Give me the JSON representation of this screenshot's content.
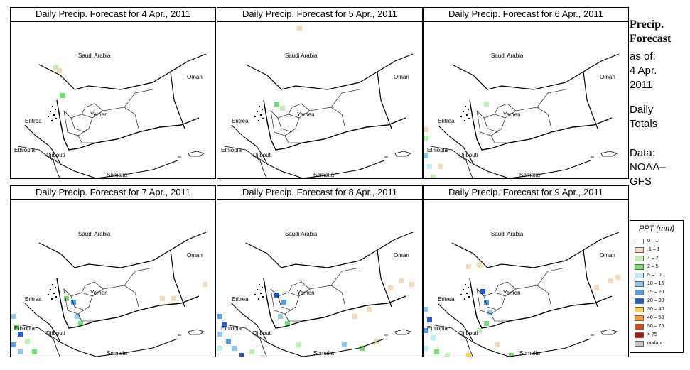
{
  "panels": [
    {
      "title": "Daily Precip. Forecast for  4 Apr., 2011",
      "day": 0
    },
    {
      "title": "Daily Precip. Forecast for  5 Apr., 2011",
      "day": 1
    },
    {
      "title": "Daily Precip. Forecast for  6 Apr., 2011",
      "day": 2
    },
    {
      "title": "Daily Precip. Forecast for  7 Apr., 2011",
      "day": 3
    },
    {
      "title": "Daily Precip. Forecast for  8 Apr., 2011",
      "day": 4
    },
    {
      "title": "Daily Precip. Forecast for  9 Apr., 2011",
      "day": 5
    }
  ],
  "map_labels": {
    "saudi": "Saudi Arabia",
    "oman": "Oman",
    "yemen": "Yemen",
    "eritrea": "Eritrea",
    "ethiopia": "Ethiopia",
    "djibouti": "Djibouti",
    "somalia": "Somalia"
  },
  "sidebar": {
    "title_line1": "Precip.",
    "title_line2": "Forecast",
    "asof_label": "as of:",
    "date_line1": "4 Apr.",
    "date_line2": "2011",
    "totals_line1": "Daily",
    "totals_line2": "Totals",
    "data_line1": "Data:",
    "data_line2": "NOAA–",
    "data_line3": "GFS"
  },
  "legend": {
    "title": "PPT (mm)",
    "items": [
      {
        "label": "0 – 1",
        "color": "#ffffff"
      },
      {
        "label": ".1 – 1",
        "color": "#f2d9b8"
      },
      {
        "label": "1 – 2",
        "color": "#b9f2a8"
      },
      {
        "label": "2 – 5",
        "color": "#6ee06e"
      },
      {
        "label": "5 – 10",
        "color": "#b8f0f5"
      },
      {
        "label": "10 – 15",
        "color": "#8fcaf5"
      },
      {
        "label": "15 – 20",
        "color": "#4f9df0"
      },
      {
        "label": "20 – 30",
        "color": "#1e5fd8"
      },
      {
        "label": "30 – 40",
        "color": "#ffd23c"
      },
      {
        "label": "40 – 50",
        "color": "#ff9a1e"
      },
      {
        "label": "50 – 75",
        "color": "#f04010"
      },
      {
        "label": "> 75",
        "color": "#b01010"
      },
      {
        "label": "nodata",
        "color": "#c8c8c8"
      }
    ]
  }
}
